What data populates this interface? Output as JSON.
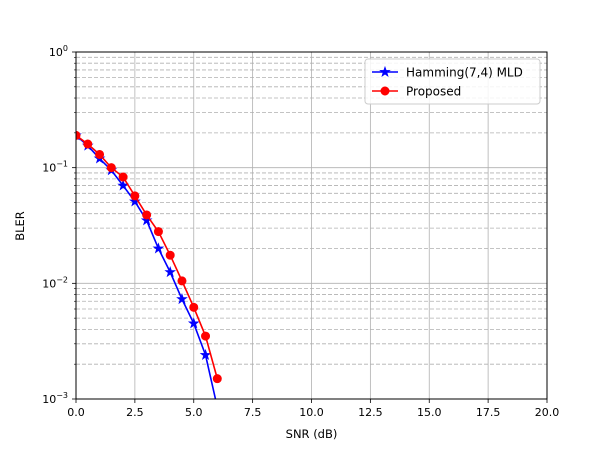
{
  "chart_data": {
    "type": "line",
    "xlabel": "SNR (dB)",
    "ylabel": "BLER",
    "xlim": [
      0,
      20
    ],
    "ylim": [
      0.001,
      1
    ],
    "yscale": "log",
    "grid": true,
    "legend_position": "top-right",
    "x_ticks": [
      "0.0",
      "2.5",
      "5.0",
      "7.5",
      "10.0",
      "12.5",
      "15.0",
      "17.5",
      "20.0"
    ],
    "y_ticks": [
      {
        "base": "10",
        "exp": "0"
      },
      {
        "base": "10",
        "exp": "−1"
      },
      {
        "base": "10",
        "exp": "−2"
      },
      {
        "base": "10",
        "exp": "−3"
      }
    ],
    "series": [
      {
        "name": "Hamming(7,4) MLD",
        "color": "#0000ff",
        "marker": "star",
        "x": [
          0,
          0.5,
          1,
          1.5,
          2,
          2.5,
          3,
          3.5,
          4,
          4.5,
          5,
          5.5,
          6
        ],
        "y": [
          0.19,
          0.155,
          0.12,
          0.095,
          0.07,
          0.051,
          0.035,
          0.02,
          0.0125,
          0.0073,
          0.0045,
          0.0024,
          0.00085
        ]
      },
      {
        "name": "Proposed",
        "color": "#ff0000",
        "marker": "circle",
        "x": [
          0,
          0.5,
          1,
          1.5,
          2,
          2.5,
          3,
          3.5,
          4,
          4.5,
          5,
          5.5,
          6
        ],
        "y": [
          0.19,
          0.16,
          0.13,
          0.1,
          0.083,
          0.057,
          0.039,
          0.028,
          0.0175,
          0.0105,
          0.0062,
          0.0035,
          0.0015
        ]
      }
    ]
  }
}
